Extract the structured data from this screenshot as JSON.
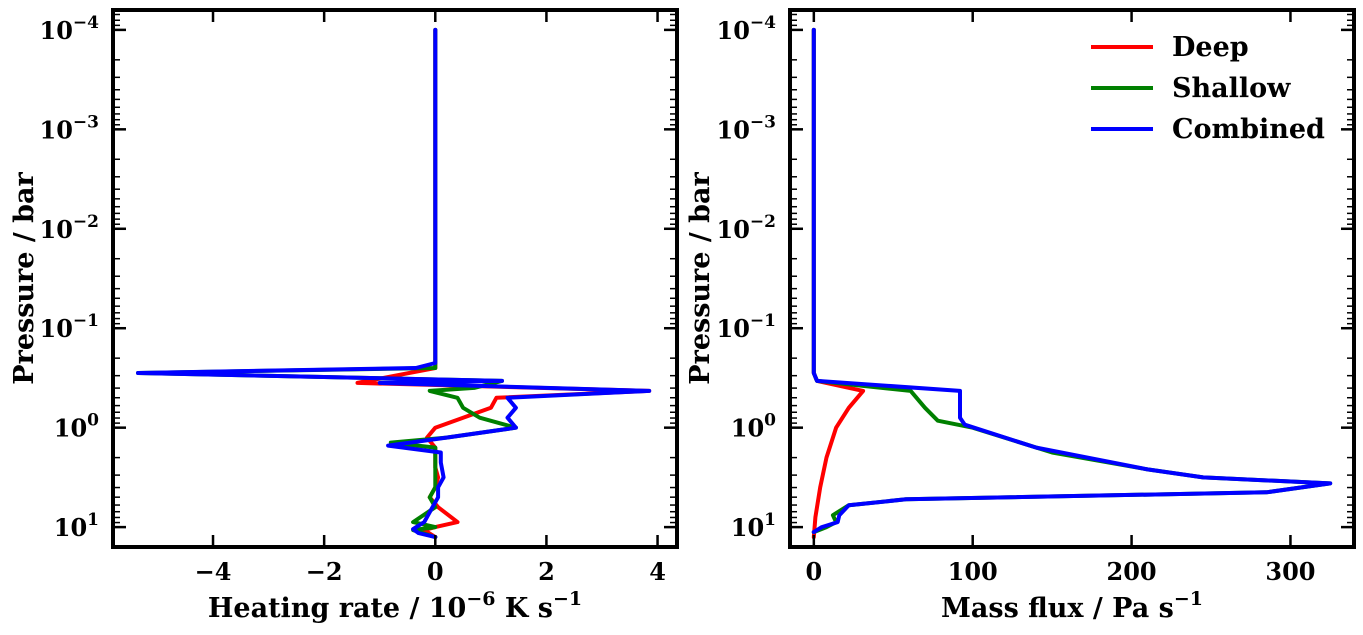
{
  "chart_data": [
    {
      "type": "line",
      "panel": "left",
      "xlabel": "Heating rate / 10",
      "xlabel_exp": "−6",
      "xlabel_units": " K s",
      "xlabel_units_exp": "−1",
      "ylabel": "Pressure / bar",
      "xlim": [
        -5.8,
        4.35
      ],
      "ylim_log10": [
        1.2,
        -4.2
      ],
      "y_inverted": true,
      "y_scale": "log",
      "xticks": [
        -4,
        -2,
        0,
        2,
        4
      ],
      "xtick_labels": [
        "−4",
        "−2",
        "0",
        "2",
        "4"
      ],
      "yticks_log10": [
        -4,
        -3,
        -2,
        -1,
        0,
        1
      ],
      "ytick_base": "10",
      "ytick_exps": [
        "−4",
        "−3",
        "−2",
        "−1",
        "0",
        "1"
      ],
      "series": [
        {
          "name": "Deep",
          "color": "#ff0000",
          "points": [
            [
              0,
              -4
            ],
            [
              0,
              -0.7
            ],
            [
              0,
              -0.6
            ],
            [
              -1.4,
              -0.45
            ],
            [
              3.85,
              -0.37
            ],
            [
              1.1,
              -0.3
            ],
            [
              1.0,
              -0.2
            ],
            [
              0.5,
              -0.1
            ],
            [
              0,
              0.0
            ],
            [
              -0.15,
              0.1
            ],
            [
              0,
              0.2
            ],
            [
              0,
              0.3
            ],
            [
              0,
              0.4
            ],
            [
              0.05,
              0.5
            ],
            [
              0,
              0.6
            ],
            [
              -0.1,
              0.7
            ],
            [
              0.05,
              0.8
            ],
            [
              0.4,
              0.95
            ],
            [
              0,
              1.0
            ],
            [
              -0.2,
              1.03
            ],
            [
              0,
              1.1
            ]
          ]
        },
        {
          "name": "Shallow",
          "color": "#008000",
          "points": [
            [
              0,
              -4
            ],
            [
              0,
              -0.7
            ],
            [
              0,
              -0.6
            ],
            [
              -5.35,
              -0.55
            ],
            [
              1.2,
              -0.47
            ],
            [
              0.7,
              -0.4
            ],
            [
              -0.1,
              -0.37
            ],
            [
              0.4,
              -0.3
            ],
            [
              0.5,
              -0.2
            ],
            [
              0.8,
              -0.1
            ],
            [
              1.45,
              0.0
            ],
            [
              0.2,
              0.1
            ],
            [
              -0.8,
              0.15
            ],
            [
              0,
              0.2
            ],
            [
              0,
              0.3
            ],
            [
              0,
              0.4
            ],
            [
              0,
              0.5
            ],
            [
              0,
              0.6
            ],
            [
              -0.1,
              0.7
            ],
            [
              0,
              0.8
            ],
            [
              -0.4,
              0.95
            ],
            [
              0,
              1.0
            ],
            [
              -0.4,
              1.03
            ],
            [
              0,
              1.1
            ]
          ]
        },
        {
          "name": "Combined",
          "color": "#0000ff",
          "points": [
            [
              0,
              -4
            ],
            [
              0,
              -0.7
            ],
            [
              0,
              -0.65
            ],
            [
              -0.35,
              -0.6
            ],
            [
              -5.35,
              -0.55
            ],
            [
              1.2,
              -0.47
            ],
            [
              -1.0,
              -0.45
            ],
            [
              3.85,
              -0.37
            ],
            [
              1.3,
              -0.3
            ],
            [
              1.45,
              -0.2
            ],
            [
              1.3,
              -0.1
            ],
            [
              1.45,
              0.0
            ],
            [
              0.2,
              0.1
            ],
            [
              -0.85,
              0.18
            ],
            [
              0.1,
              0.25
            ],
            [
              0.1,
              0.35
            ],
            [
              0.15,
              0.5
            ],
            [
              0.05,
              0.6
            ],
            [
              0.05,
              0.7
            ],
            [
              -0.05,
              0.8
            ],
            [
              -0.2,
              0.95
            ],
            [
              -0.4,
              1.02
            ],
            [
              -0.3,
              1.06
            ],
            [
              0,
              1.1
            ]
          ]
        }
      ]
    },
    {
      "type": "line",
      "panel": "right",
      "xlabel": "Mass flux / Pa s",
      "xlabel_exp": "−1",
      "ylabel": "Pressure / bar",
      "xlim": [
        -15,
        340
      ],
      "ylim_log10": [
        1.2,
        -4.2
      ],
      "y_inverted": true,
      "y_scale": "log",
      "xticks": [
        0,
        100,
        200,
        300
      ],
      "xtick_labels": [
        "0",
        "100",
        "200",
        "300"
      ],
      "yticks_log10": [
        -4,
        -3,
        -2,
        -1,
        0,
        1
      ],
      "ytick_base": "10",
      "ytick_exps": [
        "−4",
        "−3",
        "−2",
        "−1",
        "0",
        "1"
      ],
      "legend": {
        "location": "top-right",
        "entries": [
          "Deep",
          "Shallow",
          "Combined"
        ]
      },
      "series": [
        {
          "name": "Deep",
          "color": "#ff0000",
          "points": [
            [
              0,
              -4
            ],
            [
              0,
              -0.55
            ],
            [
              2,
              -0.47
            ],
            [
              31,
              -0.37
            ],
            [
              22,
              -0.2
            ],
            [
              14,
              0.0
            ],
            [
              8,
              0.3
            ],
            [
              4,
              0.6
            ],
            [
              1,
              0.9
            ],
            [
              0,
              1.1
            ]
          ]
        },
        {
          "name": "Shallow",
          "color": "#008000",
          "points": [
            [
              0,
              -4
            ],
            [
              0,
              -0.55
            ],
            [
              2,
              -0.47
            ],
            [
              31,
              -0.42
            ],
            [
              61,
              -0.37
            ],
            [
              70,
              -0.2
            ],
            [
              78,
              -0.07
            ],
            [
              100,
              0.0
            ],
            [
              150,
              0.25
            ],
            [
              210,
              0.42
            ],
            [
              245,
              0.5
            ],
            [
              325,
              0.56
            ],
            [
              285,
              0.65
            ],
            [
              58,
              0.72
            ],
            [
              22,
              0.78
            ],
            [
              12,
              0.88
            ],
            [
              14,
              0.95
            ],
            [
              8,
              1.0
            ],
            [
              0,
              1.05
            ]
          ]
        },
        {
          "name": "Combined",
          "color": "#0000ff",
          "points": [
            [
              0,
              -4
            ],
            [
              0,
              -0.55
            ],
            [
              2,
              -0.47
            ],
            [
              92,
              -0.37
            ],
            [
              92,
              -0.1
            ],
            [
              95,
              -0.03
            ],
            [
              140,
              0.2
            ],
            [
              210,
              0.42
            ],
            [
              245,
              0.5
            ],
            [
              325,
              0.56
            ],
            [
              285,
              0.65
            ],
            [
              58,
              0.72
            ],
            [
              22,
              0.78
            ],
            [
              16,
              0.88
            ],
            [
              15,
              0.95
            ],
            [
              5,
              1.0
            ],
            [
              0,
              1.05
            ]
          ]
        }
      ]
    }
  ]
}
